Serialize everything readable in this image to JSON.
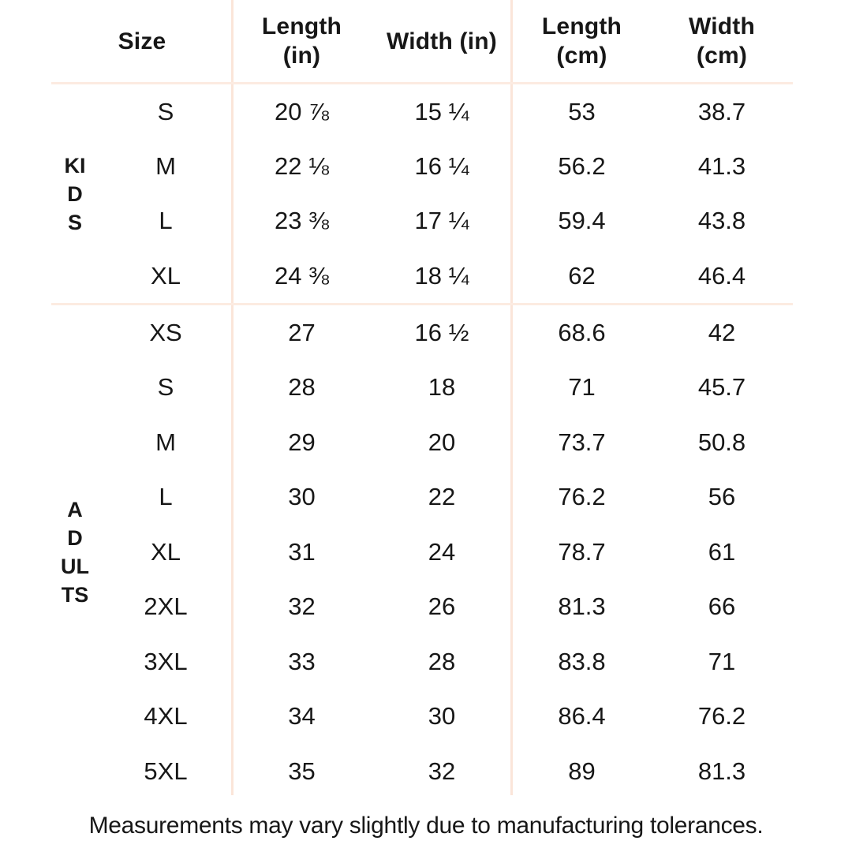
{
  "table": {
    "headers": [
      "Size",
      "Length\n(in)",
      "Width (in)",
      "Length\n(cm)",
      "Width\n(cm)"
    ],
    "sections": [
      {
        "label": "KIDS",
        "rows": [
          [
            "S",
            "20 ⅞",
            "15 ¼",
            "53",
            "38.7"
          ],
          [
            "M",
            "22 ⅛",
            "16 ¼",
            "56.2",
            "41.3"
          ],
          [
            "L",
            "23 ⅜",
            "17 ¼",
            "59.4",
            "43.8"
          ],
          [
            "XL",
            "24 ⅜",
            "18 ¼",
            "62",
            "46.4"
          ]
        ]
      },
      {
        "label": "ADULTS",
        "rows": [
          [
            "XS",
            "27",
            "16 ½",
            "68.6",
            "42"
          ],
          [
            "S",
            "28",
            "18",
            "71",
            "45.7"
          ],
          [
            "M",
            "29",
            "20",
            "73.7",
            "50.8"
          ],
          [
            "L",
            "30",
            "22",
            "76.2",
            "56"
          ],
          [
            "XL",
            "31",
            "24",
            "78.7",
            "61"
          ],
          [
            "2XL",
            "32",
            "26",
            "81.3",
            "66"
          ],
          [
            "3XL",
            "33",
            "28",
            "83.8",
            "71"
          ],
          [
            "4XL",
            "34",
            "30",
            "86.4",
            "76.2"
          ],
          [
            "5XL",
            "35",
            "32",
            "89",
            "81.3"
          ]
        ]
      }
    ]
  },
  "footer": {
    "note": "Measurements may vary slightly due to manufacturing tolerances."
  },
  "colors": {
    "background": "#ffffff",
    "text": "#171717",
    "divider_horizontal": "#fcebe1",
    "divider_vertical": "#fbe5d9"
  },
  "chart_data": {
    "type": "table",
    "columns": [
      "Size",
      "Length (in)",
      "Width (in)",
      "Length (cm)",
      "Width (cm)"
    ],
    "groups": [
      {
        "name": "KIDS",
        "rows": [
          [
            "S",
            "20 ⅞",
            "15 ¼",
            "53",
            "38.7"
          ],
          [
            "M",
            "22 ⅛",
            "16 ¼",
            "56.2",
            "41.3"
          ],
          [
            "L",
            "23 ⅜",
            "17 ¼",
            "59.4",
            "43.8"
          ],
          [
            "XL",
            "24 ⅜",
            "18 ¼",
            "62",
            "46.4"
          ]
        ]
      },
      {
        "name": "ADULTS",
        "rows": [
          [
            "XS",
            "27",
            "16 ½",
            "68.6",
            "42"
          ],
          [
            "S",
            "28",
            "18",
            "71",
            "45.7"
          ],
          [
            "M",
            "29",
            "20",
            "73.7",
            "50.8"
          ],
          [
            "L",
            "30",
            "22",
            "76.2",
            "56"
          ],
          [
            "XL",
            "31",
            "24",
            "78.7",
            "61"
          ],
          [
            "2XL",
            "32",
            "26",
            "81.3",
            "66"
          ],
          [
            "3XL",
            "33",
            "28",
            "83.8",
            "71"
          ],
          [
            "4XL",
            "34",
            "30",
            "86.4",
            "76.2"
          ],
          [
            "5XL",
            "35",
            "32",
            "89",
            "81.3"
          ]
        ]
      }
    ],
    "note": "Measurements may vary slightly due to manufacturing tolerances."
  }
}
